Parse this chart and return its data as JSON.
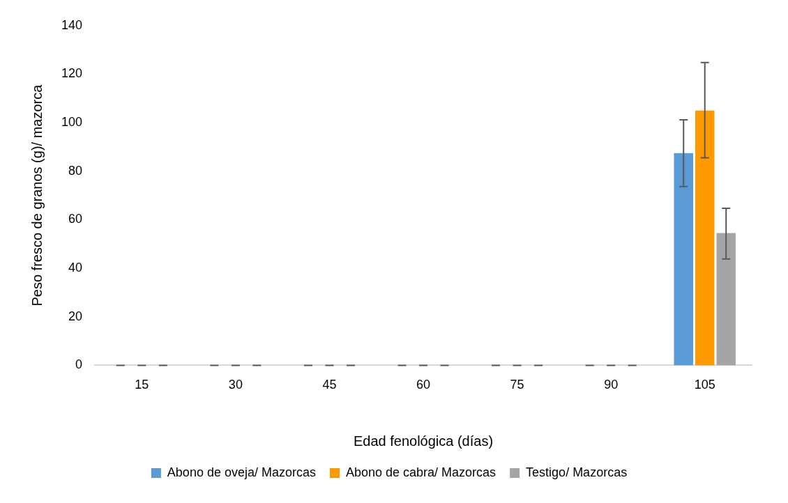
{
  "chart_data": {
    "type": "bar",
    "xlabel": "Edad fenológica (días)",
    "ylabel": "Peso fresco de granos (g)/ mazorca",
    "categories": [
      "15",
      "30",
      "45",
      "60",
      "75",
      "90",
      "105"
    ],
    "series": [
      {
        "name": "Abono de oveja/ Mazorcas",
        "color": "#5b9bd5",
        "values": [
          0,
          0,
          0,
          0,
          0,
          0,
          87.5
        ],
        "errors": [
          0,
          0,
          0,
          0,
          0,
          0,
          [
            73.7,
            101.2
          ]
        ]
      },
      {
        "name": "Abono de cabra/ Mazorcas",
        "color": "#ff9900",
        "values": [
          0,
          0,
          0,
          0,
          0,
          0,
          105
        ],
        "errors": [
          0,
          0,
          0,
          0,
          0,
          0,
          [
            85.5,
            124.8
          ]
        ]
      },
      {
        "name": "Testigo/ Mazorcas",
        "color": "#a5a5a5",
        "values": [
          0,
          0,
          0,
          0,
          0,
          0,
          54.5
        ],
        "errors": [
          0,
          0,
          0,
          0,
          0,
          0,
          [
            43.8,
            64.7
          ]
        ]
      }
    ],
    "ylim": [
      0,
      140
    ],
    "yticks": [
      0,
      20,
      40,
      60,
      80,
      100,
      120,
      140
    ],
    "grid": false,
    "legend": "bottom"
  }
}
